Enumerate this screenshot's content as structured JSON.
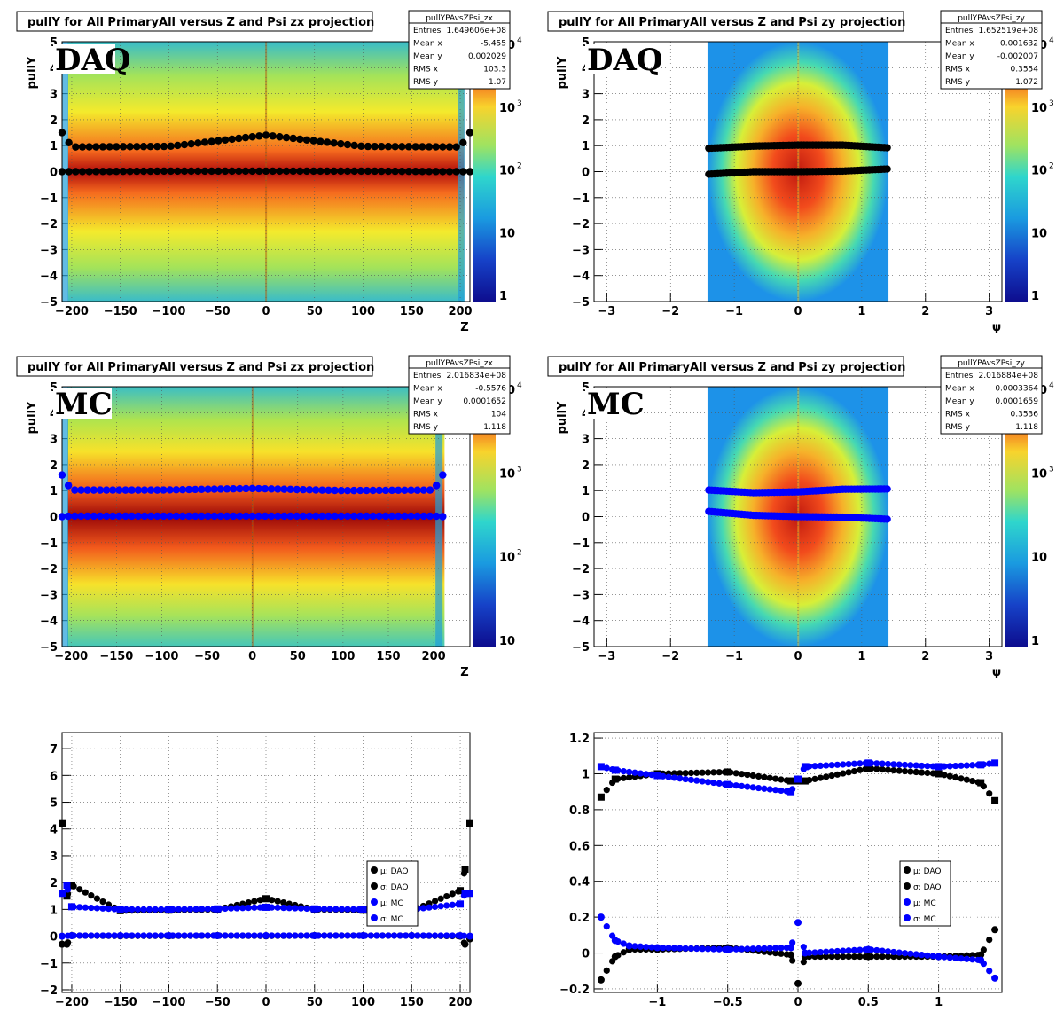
{
  "colors": {
    "daq": "#000000",
    "mc": "#0000ff"
  },
  "panels": [
    {
      "title": "pullY for All PrimaryAll versus Z and Psi zx projection",
      "stats_name": "pullYPAvsZPsi_zx",
      "stats": [
        [
          "Entries",
          "1.649606e+08"
        ],
        [
          "Mean x",
          "-5.455"
        ],
        [
          "Mean y",
          "0.002029"
        ],
        [
          "RMS x",
          "103.3"
        ],
        [
          "RMS y",
          "1.07"
        ]
      ],
      "label": "DAQ",
      "ylabel": "pullY",
      "xlabel": "Z",
      "palette_labels": [
        "1",
        "10",
        "10",
        "2",
        "10",
        "3",
        "10",
        "4"
      ]
    },
    {
      "title": "pullY for All PrimaryAll versus Z and Psi zy projection",
      "stats_name": "pullYPAvsZPsi_zy",
      "stats": [
        [
          "Entries",
          "1.652519e+08"
        ],
        [
          "Mean x",
          "0.001632"
        ],
        [
          "Mean y",
          "-0.002007"
        ],
        [
          "RMS x",
          "0.3554"
        ],
        [
          "RMS y",
          "1.072"
        ]
      ],
      "label": "DAQ",
      "ylabel": "pullY",
      "xlabel": "ψ",
      "palette_labels": [
        "1",
        "10",
        "10",
        "2",
        "10",
        "3",
        "10",
        "4"
      ]
    },
    {
      "title": "pullY for All PrimaryAll versus Z and Psi zx projection",
      "stats_name": "pullYPAvsZPsi_zx",
      "stats": [
        [
          "Entries",
          "2.016834e+08"
        ],
        [
          "Mean x",
          "-0.5576"
        ],
        [
          "Mean y",
          "0.0001652"
        ],
        [
          "RMS x",
          "104"
        ],
        [
          "RMS y",
          "1.118"
        ]
      ],
      "label": "MC",
      "ylabel": "pullY",
      "xlabel": "Z",
      "palette_labels": [
        "10",
        "10",
        "2",
        "10",
        "3",
        "10",
        "4"
      ]
    },
    {
      "title": "pullY for All PrimaryAll versus Z and Psi zy projection",
      "stats_name": "pullYPAvsZPsi_zy",
      "stats": [
        [
          "Entries",
          "2.016884e+08"
        ],
        [
          "Mean x",
          "0.0003364"
        ],
        [
          "Mean y",
          "0.0001659"
        ],
        [
          "RMS x",
          "0.3536"
        ],
        [
          "RMS y",
          "1.118"
        ]
      ],
      "label": "MC",
      "ylabel": "pullY",
      "xlabel": "ψ",
      "palette_labels": [
        "1",
        "10",
        "10",
        "3",
        "10",
        "4"
      ]
    }
  ],
  "legend_labels": [
    "μ: DAQ",
    "σ: DAQ",
    "μ: MC",
    "σ: MC"
  ],
  "chart_data": [
    {
      "type": "heatmap",
      "x_range": [
        -210,
        210
      ],
      "ylim": [
        -5,
        5
      ],
      "xticks": [
        "−200",
        "−150",
        "−100",
        "−50",
        "0",
        "50",
        "100",
        "150",
        "200"
      ],
      "yticks": [
        "−5",
        "−4",
        "−3",
        "−2",
        "−1",
        "0",
        "1",
        "2",
        "3",
        "4",
        "5"
      ],
      "overlay": {
        "mu_daq": {
          "x": [
            -210,
            -200,
            -100,
            0,
            100,
            200,
            210
          ],
          "y": [
            0,
            0,
            0.02,
            0.02,
            0.02,
            0,
            0
          ]
        },
        "sigma_daq": {
          "x": [
            -210,
            -200,
            -100,
            0,
            100,
            200,
            210
          ],
          "y": [
            1.5,
            0.95,
            0.97,
            1.4,
            0.97,
            0.95,
            1.5
          ]
        }
      }
    },
    {
      "type": "heatmap",
      "x_range": [
        -3.2,
        3.2
      ],
      "ylim": [
        -5,
        5
      ],
      "xticks": [
        "−3",
        "−2",
        "−1",
        "0",
        "1",
        "2",
        "3"
      ],
      "yticks": [
        "−5",
        "−4",
        "−3",
        "−2",
        "−1",
        "0",
        "1",
        "2",
        "3",
        "4",
        "5"
      ],
      "overlay": {
        "mu_daq": {
          "x": [
            -1.4,
            -0.7,
            0,
            0.7,
            1.4
          ],
          "y": [
            -0.1,
            0,
            0,
            0.02,
            0.1
          ]
        },
        "sigma_daq": {
          "x": [
            -1.4,
            -0.7,
            0,
            0.7,
            1.4
          ],
          "y": [
            0.9,
            0.98,
            1.02,
            1.02,
            0.92
          ]
        }
      }
    },
    {
      "type": "heatmap",
      "x_range": [
        -210,
        240
      ],
      "ylim": [
        -5,
        5
      ],
      "xticks": [
        "−200",
        "−150",
        "−100",
        "−50",
        "0",
        "50",
        "100",
        "150",
        "200"
      ],
      "yticks": [
        "−5",
        "−4",
        "−3",
        "−2",
        "−1",
        "0",
        "1",
        "2",
        "3",
        "4",
        "5"
      ],
      "overlay": {
        "mu_mc": {
          "x": [
            -210,
            -200,
            -100,
            0,
            100,
            200,
            210
          ],
          "y": [
            0,
            0.02,
            0.02,
            0.02,
            0.02,
            0.02,
            0
          ]
        },
        "sigma_mc": {
          "x": [
            -210,
            -200,
            -100,
            0,
            100,
            200,
            210
          ],
          "y": [
            1.6,
            1.02,
            1.02,
            1.08,
            1.0,
            1.02,
            1.6
          ]
        }
      }
    },
    {
      "type": "heatmap",
      "x_range": [
        -3.2,
        3.2
      ],
      "ylim": [
        -5,
        5
      ],
      "xticks": [
        "−3",
        "−2",
        "−1",
        "0",
        "1",
        "2",
        "3"
      ],
      "yticks": [
        "−5",
        "−4",
        "−3",
        "−2",
        "−1",
        "0",
        "1",
        "2",
        "3",
        "4",
        "5"
      ],
      "overlay": {
        "mu_mc": {
          "x": [
            -1.4,
            -0.7,
            0,
            0.7,
            1.4
          ],
          "y": [
            0.2,
            0.05,
            0,
            -0.02,
            -0.1
          ]
        },
        "sigma_mc": {
          "x": [
            -1.4,
            -0.7,
            0,
            0.7,
            1.4
          ],
          "y": [
            1.02,
            0.92,
            0.95,
            1.05,
            1.06
          ]
        }
      }
    },
    {
      "type": "scatter",
      "x_range": [
        -210,
        210
      ],
      "ylim": [
        -2.1,
        7.6
      ],
      "xticks": [
        "−200",
        "−150",
        "−100",
        "−50",
        "0",
        "50",
        "100",
        "150",
        "200"
      ],
      "yticks": [
        "−2",
        "−1",
        "0",
        "1",
        "2",
        "3",
        "4",
        "5",
        "6",
        "7"
      ],
      "legend": "right",
      "series": [
        {
          "name": "μ: DAQ",
          "x": [
            -210,
            -205,
            -200,
            -150,
            -100,
            -50,
            0,
            50,
            100,
            150,
            200,
            205,
            210
          ],
          "y": [
            -0.3,
            -0.3,
            0.02,
            0.01,
            0.01,
            0.02,
            0.01,
            0.02,
            0.02,
            0.02,
            0,
            -0.3,
            -0.1
          ]
        },
        {
          "name": "σ: DAQ",
          "x": [
            -210,
            -205,
            -200,
            -150,
            -100,
            -50,
            0,
            50,
            100,
            150,
            200,
            205,
            210
          ],
          "y": [
            4.2,
            1.5,
            1.9,
            0.95,
            0.97,
            1.0,
            1.4,
            1.0,
            0.97,
            0.95,
            1.7,
            2.5,
            4.2
          ]
        },
        {
          "name": "μ: MC",
          "x": [
            -210,
            -200,
            -150,
            -100,
            -50,
            0,
            50,
            100,
            150,
            200,
            210
          ],
          "y": [
            0,
            0.02,
            0.02,
            0.02,
            0.02,
            0.02,
            0.02,
            0.02,
            0.02,
            0.02,
            0
          ]
        },
        {
          "name": "σ: MC",
          "x": [
            -210,
            -205,
            -200,
            -150,
            -100,
            -50,
            0,
            50,
            100,
            150,
            200,
            205,
            210
          ],
          "y": [
            1.6,
            1.9,
            1.1,
            1.0,
            1.0,
            1.02,
            1.08,
            1.02,
            1.0,
            1.0,
            1.2,
            1.6,
            1.6
          ]
        }
      ]
    },
    {
      "type": "scatter",
      "x_range": [
        -1.45,
        1.45
      ],
      "ylim": [
        -0.22,
        1.23
      ],
      "xticks": [
        "−1",
        "−0.5",
        "0",
        "0.5",
        "1"
      ],
      "yticks": [
        "−0.2",
        "0",
        "0.2",
        "0.4",
        "0.6",
        "0.8",
        "1",
        "1.2"
      ],
      "legend": "right",
      "series": [
        {
          "name": "μ: DAQ",
          "x": [
            -1.4,
            -1.3,
            -1.2,
            -1.0,
            -0.5,
            -0.05,
            0,
            0.05,
            0.5,
            1.0,
            1.3,
            1.4
          ],
          "y": [
            -0.15,
            -0.02,
            0.02,
            0.02,
            0.03,
            -0.01,
            -0.17,
            -0.02,
            -0.02,
            -0.02,
            -0.01,
            0.13
          ]
        },
        {
          "name": "σ: DAQ",
          "x": [
            -1.4,
            -1.3,
            -1.0,
            -0.5,
            -0.05,
            0,
            0.05,
            0.5,
            1.0,
            1.3,
            1.4
          ],
          "y": [
            0.87,
            0.97,
            1.0,
            1.01,
            0.96,
            0.96,
            0.96,
            1.03,
            1.0,
            0.95,
            0.85
          ]
        },
        {
          "name": "μ: MC",
          "x": [
            -1.4,
            -1.3,
            -1.2,
            -1.0,
            -0.5,
            -0.05,
            0,
            0.05,
            0.5,
            1.0,
            1.3,
            1.4
          ],
          "y": [
            0.2,
            0.07,
            0.04,
            0.03,
            0.02,
            0.03,
            0.17,
            0,
            0.02,
            -0.02,
            -0.04,
            -0.14
          ]
        },
        {
          "name": "σ: MC",
          "x": [
            -1.4,
            -1.3,
            -1.0,
            -0.5,
            -0.05,
            0,
            0.05,
            0.5,
            1.0,
            1.3,
            1.4
          ],
          "y": [
            1.04,
            1.02,
            0.99,
            0.94,
            0.9,
            0.97,
            1.04,
            1.06,
            1.04,
            1.05,
            1.06
          ]
        }
      ]
    }
  ]
}
